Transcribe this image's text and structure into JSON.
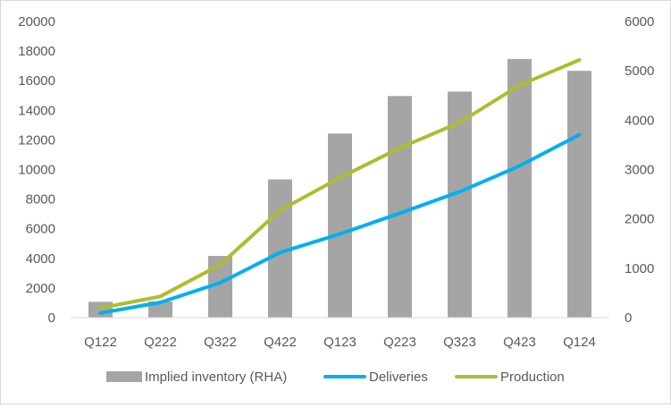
{
  "chart_data": {
    "type": "bar+line",
    "categories": [
      "Q122",
      "Q222",
      "Q322",
      "Q422",
      "Q123",
      "Q223",
      "Q323",
      "Q423",
      "Q124"
    ],
    "series": [
      {
        "name": "Implied inventory (RHA)",
        "type": "bar",
        "axis": "right",
        "color": "#a5a5a5",
        "values": [
          320,
          330,
          1250,
          2800,
          3730,
          4490,
          4580,
          5240,
          5000
        ]
      },
      {
        "name": "Deliveries",
        "type": "line",
        "axis": "left",
        "color": "#00b0f0",
        "values": [
          310,
          1030,
          2350,
          4400,
          5650,
          7050,
          8500,
          10250,
          12350
        ]
      },
      {
        "name": "Production",
        "type": "line",
        "axis": "left",
        "color": "#aebd2e",
        "values": [
          650,
          1430,
          3580,
          7250,
          9450,
          11460,
          13180,
          15700,
          17400
        ]
      }
    ],
    "left_axis": {
      "min": 0,
      "max": 20000,
      "step": 2000,
      "ticks": [
        "0",
        "2000",
        "4000",
        "6000",
        "8000",
        "10000",
        "12000",
        "14000",
        "16000",
        "18000",
        "20000"
      ]
    },
    "right_axis": {
      "min": 0,
      "max": 6000,
      "step": 1000,
      "ticks": [
        "0",
        "1000",
        "2000",
        "3000",
        "4000",
        "5000",
        "6000"
      ]
    },
    "title": "",
    "xlabel": "",
    "ylabel": "",
    "grid": false,
    "legend_position": "bottom"
  }
}
